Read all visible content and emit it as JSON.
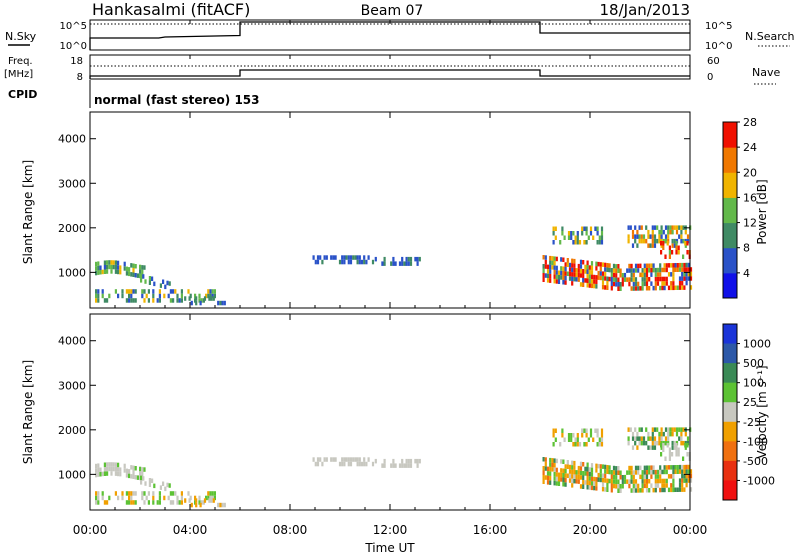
{
  "header": {
    "station": "Hankasalmi (fitACF)",
    "beam": "Beam 07",
    "date": "18/Jan/2013"
  },
  "aux_panels": {
    "nsky": {
      "label": "N.Sky",
      "ticks_left": [
        "10^5",
        "10^0"
      ],
      "ticks_right": [
        "10^5",
        "10^0"
      ],
      "right_label": "N.Search"
    },
    "freq": {
      "label_line1": "Freq.",
      "label_line2": "[MHz]",
      "ticks_left": [
        "18",
        "8"
      ],
      "ticks_right": [
        "60",
        "0"
      ],
      "right_label": "Nave"
    },
    "cpid": {
      "label": "CPID",
      "text": "normal (fast stereo) 153"
    }
  },
  "chart_data": [
    {
      "type": "heatmap",
      "name": "Power",
      "ylabel": "Slant Range [km]",
      "yticks": [
        "1000",
        "2000",
        "3000",
        "4000"
      ],
      "ylim": [
        200,
        4600
      ],
      "colorbar_label": "Power [dB]",
      "colorbar_ticks": [
        "4",
        "8",
        "12",
        "16",
        "20",
        "24",
        "28"
      ],
      "colors": [
        "#1010e8",
        "#2a52c8",
        "#3f8a64",
        "#62b84a",
        "#f0b400",
        "#f07800",
        "#f01000"
      ]
    },
    {
      "type": "heatmap",
      "name": "Velocity",
      "ylabel": "Slant Range [km]",
      "yticks": [
        "1000",
        "2000",
        "3000",
        "4000"
      ],
      "ylim": [
        200,
        4600
      ],
      "colorbar_label": "Velocity [m s⁻¹]",
      "colorbar_ticks": [
        "1000",
        "500",
        "100",
        "25",
        "-25",
        "-100",
        "-500",
        "-1000"
      ],
      "colors": [
        "#1a34d8",
        "#2c58a8",
        "#3a8a56",
        "#5cc234",
        "#c8c8c0",
        "#f0a000",
        "#f07010",
        "#e83010",
        "#f01010"
      ]
    }
  ],
  "xaxis": {
    "label": "Time UT",
    "ticks": [
      "00:00",
      "04:00",
      "08:00",
      "12:00",
      "16:00",
      "20:00",
      "00:00"
    ]
  }
}
